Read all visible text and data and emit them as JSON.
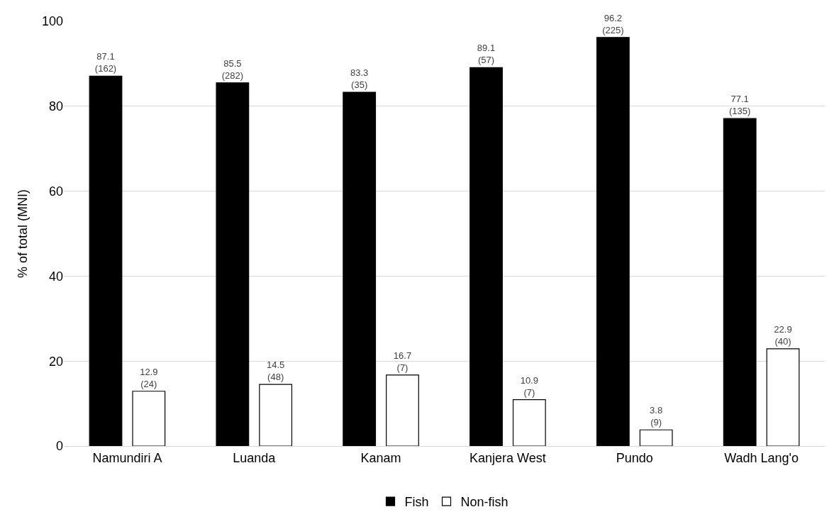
{
  "chart_data": {
    "type": "bar",
    "ylabel": "% of total (MNI)",
    "categories": [
      "Namundiri A",
      "Luanda",
      "Kanam",
      "Kanjera West",
      "Pundo",
      "Wadh Lang'o"
    ],
    "series": [
      {
        "name": "Fish",
        "color": "#000000",
        "values": [
          87.1,
          85.5,
          83.3,
          89.1,
          96.2,
          77.1
        ],
        "value_labels": [
          "87.1\n(162)",
          "85.5\n(282)",
          "83.3\n(35)",
          "89.1\n(57)",
          "96.2\n(225)",
          "77.1\n(135)"
        ]
      },
      {
        "name": "Non-fish",
        "color": "#ffffff",
        "values": [
          12.9,
          14.5,
          16.7,
          10.9,
          3.8,
          22.9
        ],
        "value_labels": [
          "12.9\n(24)",
          "14.5\n(48)",
          "16.7\n(7)",
          "10.9\n(7)",
          "3.8\n(9)",
          "22.9\n(40)"
        ]
      }
    ],
    "ylim": [
      0,
      100
    ],
    "yticks": [
      0,
      20,
      40,
      60,
      80,
      100
    ],
    "grid": "y",
    "legend": "bottom"
  }
}
